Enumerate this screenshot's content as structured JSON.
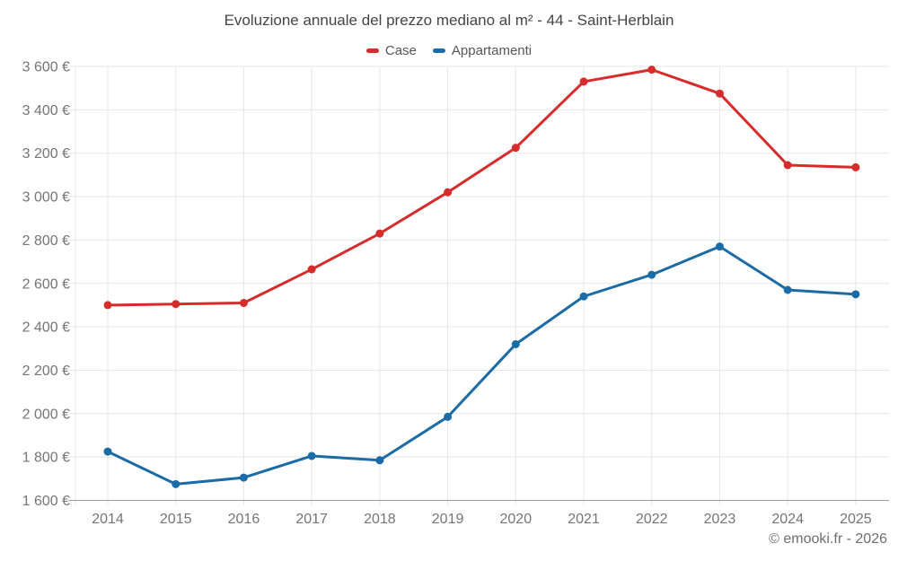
{
  "header": {
    "title": "Evoluzione annuale del prezzo mediano al m² - 44 - Saint-Herblain",
    "legend": [
      {
        "label": "Case",
        "color": "#d62c2c"
      },
      {
        "label": "Appartamenti",
        "color": "#1b6ca6"
      }
    ]
  },
  "footer": {
    "credit": "© emooki.fr - 2026"
  },
  "colors": {
    "case_red": "#d62c2c",
    "appartamenti_blue": "#1b6ca6",
    "grid": "#e7e7e7",
    "axis": "#9e9e9e",
    "tick_text": "#757575"
  },
  "chart_data": {
    "type": "line",
    "title": "Evoluzione annuale del prezzo mediano al m² - 44 - Saint-Herblain",
    "x": [
      2014,
      2015,
      2016,
      2017,
      2018,
      2019,
      2020,
      2021,
      2022,
      2023,
      2024,
      2025
    ],
    "series": [
      {
        "name": "Case",
        "color": "#d62c2c",
        "values": [
          2500,
          2505,
          2510,
          2665,
          2830,
          3020,
          3225,
          3530,
          3585,
          3475,
          3145,
          3135
        ]
      },
      {
        "name": "Appartamenti",
        "color": "#1b6ca6",
        "values": [
          1825,
          1675,
          1705,
          1805,
          1785,
          1985,
          2320,
          2540,
          2640,
          2770,
          2570,
          2550
        ]
      }
    ],
    "xlabel": "",
    "ylabel": "",
    "y_unit": "€",
    "ylim": [
      1600,
      3600
    ],
    "ytick_step": 200,
    "grid": true,
    "legend_position": "top",
    "marker": "circle"
  }
}
